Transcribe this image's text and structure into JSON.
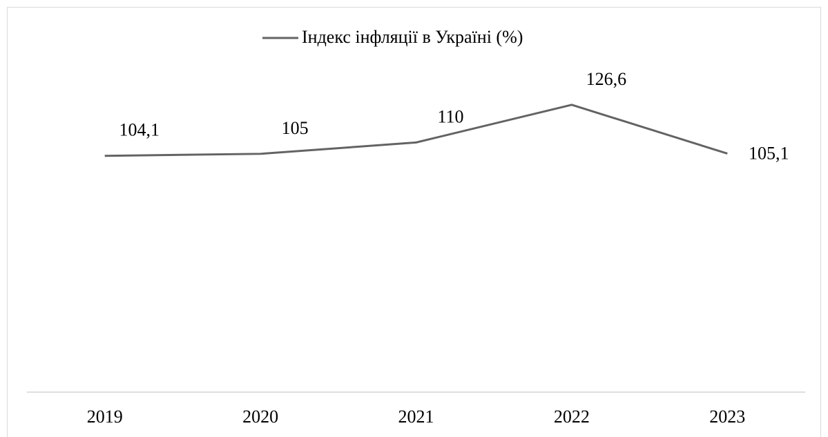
{
  "chart_data": {
    "type": "line",
    "categories": [
      "2019",
      "2020",
      "2021",
      "2022",
      "2023"
    ],
    "series": [
      {
        "name": "Індекс інфляції в Україні (%)",
        "color": "#636363",
        "values": [
          104.1,
          105,
          110,
          126.6,
          105.1
        ],
        "value_labels": [
          "104,1",
          "105",
          "110",
          "126,6",
          "105,1"
        ]
      }
    ],
    "ylim": [
      0,
      160
    ],
    "legend": "top"
  }
}
